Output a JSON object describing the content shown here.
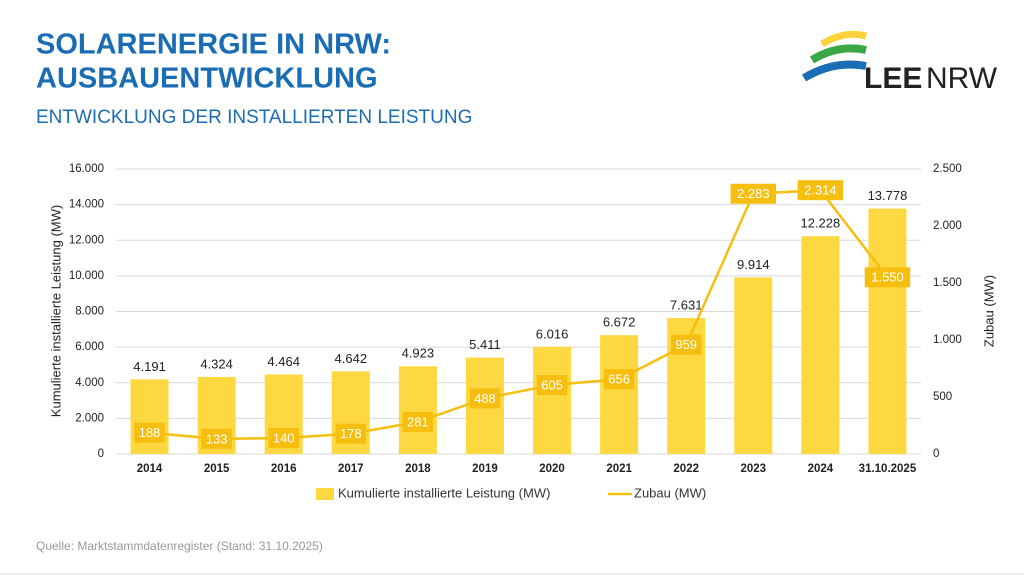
{
  "logo": {
    "bold": "LEE",
    "regular": "NRW"
  },
  "chart_data": {
    "type": "bar",
    "title": [
      "SOLARENERGIE IN NRW:",
      "AUSBAUENTWICKLUNG"
    ],
    "subtitle": "ENTWICKLUNG DER INSTALLIERTEN LEISTUNG",
    "source": "Quelle: Marktstammdatenregister (Stand: 31.10.2025)",
    "y_label": "Kumulierte installierte Leistung (MW)",
    "y2_label": "Zubau (MW)",
    "categories": [
      "2014",
      "2015",
      "2016",
      "2017",
      "2018",
      "2019",
      "2020",
      "2021",
      "2022",
      "2023",
      "2024",
      "31.10.2025"
    ],
    "series": [
      {
        "name": "Kumulierte installierte Leistung (MW)",
        "type": "bar",
        "color": "#fdd840",
        "values": [
          4191,
          4324,
          4464,
          4642,
          4923,
          5411,
          6016,
          6672,
          7631,
          9914,
          12228,
          13778
        ],
        "value_labels": [
          "4.191",
          "4.324",
          "4.464",
          "4.642",
          "4.923",
          "5.411",
          "6.016",
          "6.672",
          "7.631",
          "9.914",
          "12.228",
          "13.778"
        ]
      },
      {
        "name": "Zubau (MW)",
        "type": "line",
        "axis": "y2",
        "color": "#f6bf10",
        "values": [
          188,
          133,
          140,
          178,
          281,
          488,
          605,
          656,
          959,
          2283,
          2314,
          1550
        ],
        "value_labels": [
          "188",
          "133",
          "140",
          "178",
          "281",
          "488",
          "605",
          "656",
          "959",
          "2.283",
          "2.314",
          "1.550"
        ]
      }
    ],
    "ylim": [
      0,
      16000
    ],
    "yticks": [
      0,
      {
        "value": 2000,
        "label": "2.000"
      },
      {
        "value": 4000,
        "label": "4.000"
      },
      {
        "value": 6000,
        "label": "6.000"
      },
      {
        "value": 8000,
        "label": "8.000"
      },
      {
        "value": 10000,
        "label": "10.000"
      },
      {
        "value": 12000,
        "label": "12.000"
      },
      {
        "value": 14000,
        "label": "14.000"
      },
      {
        "value": 16000,
        "label": "16.000"
      }
    ],
    "y2lim": [
      0,
      2500
    ],
    "y2ticks": [
      0,
      500,
      {
        "value": 1000,
        "label": "1.000"
      },
      {
        "value": 1500,
        "label": "1.500"
      },
      {
        "value": 2000,
        "label": "2.000"
      },
      {
        "value": 2500,
        "label": "2.500"
      }
    ],
    "grid": true
  }
}
